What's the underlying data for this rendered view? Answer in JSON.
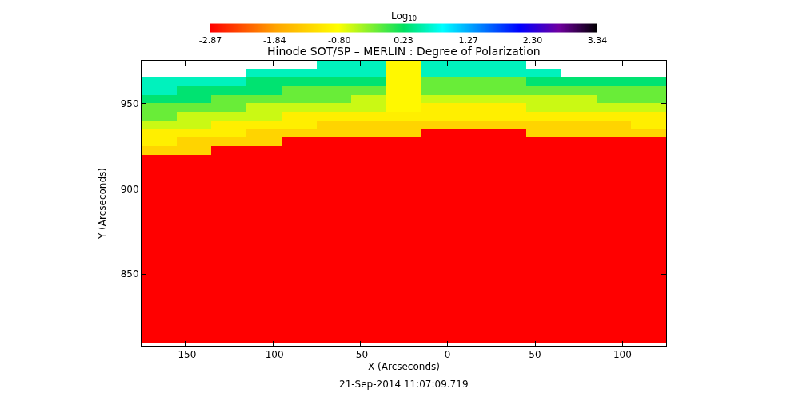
{
  "chart_data": {
    "type": "heatmap",
    "title": "Hinode SOT/SP – MERLIN : Degree of Polarization",
    "xlabel": "X (Arcseconds)",
    "ylabel": "Y (Arcseconds)",
    "clabel": "Log$_{10}$",
    "annotations": [
      "21-Sep-2014 11:07:09.719"
    ],
    "x": [
      -165,
      -145,
      -125,
      -105,
      -85,
      -65,
      -45,
      -25,
      -5,
      15,
      35,
      55,
      75,
      95,
      115
    ],
    "y": [
      972.5,
      967.5,
      962.5,
      957.5,
      952.5,
      947.5,
      942.5,
      937.5,
      932.5,
      927.5,
      922.5,
      917.5,
      912.5,
      907.5,
      902.5,
      897.5,
      892.5,
      887.5,
      882.5,
      877.5,
      872.5,
      867.5,
      862.5,
      857.5,
      852.5,
      847.5,
      842.5,
      837.5,
      832.5,
      827.5,
      822.5,
      817.5,
      812.5
    ],
    "cells": [
      [
        null,
        null,
        null,
        null,
        null,
        0.6,
        0.6,
        -0.9,
        0.6,
        0.6,
        0.6,
        null,
        null,
        null,
        null
      ],
      [
        null,
        null,
        null,
        0.6,
        0.6,
        0.6,
        0.6,
        -0.9,
        0.6,
        0.6,
        0.6,
        0.6,
        null,
        null,
        null
      ],
      [
        0.6,
        0.6,
        0.6,
        0.3,
        0.3,
        0.3,
        0.3,
        -0.9,
        -0.2,
        -0.2,
        -0.2,
        0.3,
        0.3,
        0.3,
        0.3
      ],
      [
        0.6,
        0.3,
        0.3,
        0.3,
        -0.2,
        -0.2,
        -0.2,
        -0.9,
        -0.2,
        -0.2,
        -0.2,
        -0.2,
        -0.2,
        -0.2,
        -0.2
      ],
      [
        0.3,
        0.3,
        -0.2,
        -0.2,
        -0.2,
        -0.2,
        -0.6,
        -0.9,
        -0.6,
        -0.6,
        -0.6,
        -0.6,
        -0.6,
        -0.2,
        -0.2
      ],
      [
        -0.2,
        -0.2,
        -0.2,
        -0.6,
        -0.6,
        -0.6,
        -0.6,
        -0.9,
        -1.0,
        -1.0,
        -1.0,
        -0.6,
        -0.6,
        -0.6,
        -0.6
      ],
      [
        -0.2,
        -0.6,
        -0.6,
        -0.6,
        -1.0,
        -1.0,
        -1.0,
        -1.0,
        -1.0,
        -1.0,
        -1.0,
        -1.0,
        -1.0,
        -1.0,
        -1.0
      ],
      [
        -0.6,
        -0.6,
        -1.0,
        -1.0,
        -1.0,
        -1.3,
        -1.3,
        -1.3,
        -1.3,
        -1.3,
        -1.3,
        -1.3,
        -1.3,
        -1.3,
        -1.0
      ],
      [
        -1.0,
        -1.0,
        -1.0,
        -1.3,
        -1.3,
        -1.3,
        -1.3,
        -1.3,
        -2.87,
        -2.87,
        -2.87,
        -1.3,
        -1.3,
        -1.3,
        -1.3
      ],
      [
        -1.0,
        -1.3,
        -1.3,
        -1.3,
        -2.87,
        -2.87,
        -2.87,
        -2.87,
        -2.87,
        -2.87,
        -2.87,
        -2.87,
        -2.87,
        -2.87,
        -2.87
      ],
      [
        -1.3,
        -1.3,
        -2.87,
        -2.87,
        -2.87,
        -2.87,
        -2.87,
        -2.87,
        -2.87,
        -2.87,
        -2.87,
        -2.87,
        -2.87,
        -2.87,
        -2.87
      ],
      [
        -2.87,
        -2.87,
        -2.87,
        -2.87,
        -2.87,
        -2.87,
        -2.87,
        -2.87,
        -2.87,
        -2.87,
        -2.87,
        -2.87,
        -2.87,
        -2.87,
        -2.87
      ],
      [
        -2.87,
        -2.87,
        -2.87,
        -2.87,
        -2.87,
        -2.87,
        -2.87,
        -2.87,
        -2.87,
        -2.87,
        -2.87,
        -2.87,
        -2.87,
        -2.87,
        -2.87
      ],
      [
        -2.87,
        -2.87,
        -2.87,
        -2.87,
        -2.87,
        -2.87,
        -2.87,
        -2.87,
        -2.87,
        -2.87,
        -2.87,
        -2.87,
        -2.87,
        -2.87,
        -2.87
      ],
      [
        -2.87,
        -2.87,
        -2.87,
        -2.87,
        -2.87,
        -2.87,
        -2.87,
        -2.87,
        -2.87,
        -2.87,
        -2.87,
        -2.87,
        -2.87,
        -2.87,
        -2.87
      ],
      [
        -2.87,
        -2.87,
        -2.87,
        -2.87,
        -2.87,
        -2.87,
        -2.87,
        -2.87,
        -2.87,
        -2.87,
        -2.87,
        -2.87,
        -2.87,
        -2.87,
        -2.87
      ],
      [
        -2.87,
        -2.87,
        -2.87,
        -2.87,
        -2.87,
        -2.87,
        -2.87,
        -2.87,
        -2.87,
        -2.87,
        -2.87,
        -2.87,
        -2.87,
        -2.87,
        -2.87
      ],
      [
        -2.87,
        -2.87,
        -2.87,
        -2.87,
        -2.87,
        -2.87,
        -2.87,
        -2.87,
        -2.87,
        -2.87,
        -2.87,
        -2.87,
        -2.87,
        -2.87,
        -2.87
      ],
      [
        -2.87,
        -2.87,
        -2.87,
        -2.87,
        -2.87,
        -2.87,
        -2.87,
        -2.87,
        -2.87,
        -2.87,
        -2.87,
        -2.87,
        -2.87,
        -2.87,
        -2.87
      ],
      [
        -2.87,
        -2.87,
        -2.87,
        -2.87,
        -2.87,
        -2.87,
        -2.87,
        -2.87,
        -2.87,
        -2.87,
        -2.87,
        -2.87,
        -2.87,
        -2.87,
        -2.87
      ],
      [
        -2.87,
        -2.87,
        -2.87,
        -2.87,
        -2.87,
        -2.87,
        -2.87,
        -2.87,
        -2.87,
        -2.87,
        -2.87,
        -2.87,
        -2.87,
        -2.87,
        -2.87
      ],
      [
        -2.87,
        -2.87,
        -2.87,
        -2.87,
        -2.87,
        -2.87,
        -2.87,
        -2.87,
        -2.87,
        -2.87,
        -2.87,
        -2.87,
        -2.87,
        -2.87,
        -2.87
      ],
      [
        -2.87,
        -2.87,
        -2.87,
        -2.87,
        -2.87,
        -2.87,
        -2.87,
        -2.87,
        -2.87,
        -2.87,
        -2.87,
        -2.87,
        -2.87,
        -2.87,
        -2.87
      ],
      [
        -2.87,
        -2.87,
        -2.87,
        -2.87,
        -2.87,
        -2.87,
        -2.87,
        -2.87,
        -2.87,
        -2.87,
        -2.87,
        -2.87,
        -2.87,
        -2.87,
        -2.87
      ],
      [
        -2.87,
        -2.87,
        -2.87,
        -2.87,
        -2.87,
        -2.87,
        -2.87,
        -2.87,
        -2.87,
        -2.87,
        -2.87,
        -2.87,
        -2.87,
        -2.87,
        -2.87
      ],
      [
        -2.87,
        -2.87,
        -2.87,
        -2.87,
        -2.87,
        -2.87,
        -2.87,
        -2.87,
        -2.87,
        -2.87,
        -2.87,
        -2.87,
        -2.87,
        -2.87,
        -2.87
      ],
      [
        -2.87,
        -2.87,
        -2.87,
        -2.87,
        -2.87,
        -2.87,
        -2.87,
        -2.87,
        -2.87,
        -2.87,
        -2.87,
        -2.87,
        -2.87,
        -2.87,
        -2.87
      ],
      [
        -2.87,
        -2.87,
        -2.87,
        -2.87,
        -2.87,
        -2.87,
        -2.87,
        -2.87,
        -2.87,
        -2.87,
        -2.87,
        -2.87,
        -2.87,
        -2.87,
        -2.87
      ],
      [
        -2.87,
        -2.87,
        -2.87,
        -2.87,
        -2.87,
        -2.87,
        -2.87,
        -2.87,
        -2.87,
        -2.87,
        -2.87,
        -2.87,
        -2.87,
        -2.87,
        -2.87
      ],
      [
        -2.87,
        -2.87,
        -2.87,
        -2.87,
        -2.87,
        -2.87,
        -2.87,
        -2.87,
        -2.87,
        -2.87,
        -2.87,
        -2.87,
        -2.87,
        -2.87,
        -2.87
      ],
      [
        -2.87,
        -2.87,
        -2.87,
        -2.87,
        -2.87,
        -2.87,
        -2.87,
        -2.87,
        -2.87,
        -2.87,
        -2.87,
        -2.87,
        -2.87,
        -2.87,
        -2.87
      ],
      [
        -2.87,
        -2.87,
        -2.87,
        -2.87,
        -2.87,
        -2.87,
        -2.87,
        -2.87,
        -2.87,
        -2.87,
        -2.87,
        -2.87,
        -2.87,
        -2.87,
        -2.87
      ],
      [
        -2.87,
        -2.87,
        -2.87,
        -2.87,
        -2.87,
        -2.87,
        -2.87,
        -2.87,
        -2.87,
        -2.87,
        -2.87,
        -2.87,
        -2.87,
        -2.87,
        -2.87
      ]
    ],
    "clim": [
      -2.87,
      3.34
    ],
    "cticks": [
      {
        "value": -2.87,
        "label": "-2.87"
      },
      {
        "value": -1.84,
        "label": "-1.84"
      },
      {
        "value": -0.8,
        "label": "-0.80"
      },
      {
        "value": 0.23,
        "label": "0.23"
      },
      {
        "value": 1.27,
        "label": "1.27"
      },
      {
        "value": 2.3,
        "label": "2.30"
      },
      {
        "value": 3.34,
        "label": "3.34"
      }
    ],
    "xlim": [
      -175,
      125
    ],
    "ylim": [
      808,
      975
    ],
    "xticks": [
      -150,
      -100,
      -50,
      0,
      50,
      100
    ],
    "yticks": [
      850,
      900,
      950
    ]
  }
}
